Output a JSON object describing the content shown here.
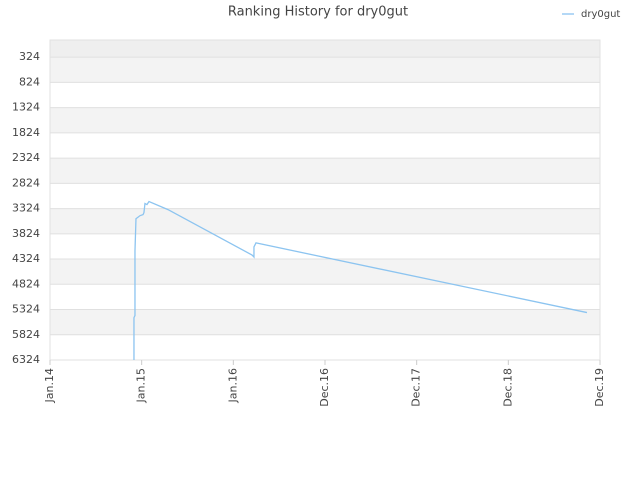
{
  "chart_data": {
    "type": "line",
    "title": "Ranking History for dry0gut",
    "x": [
      0.916,
      0.916,
      0.927,
      0.927,
      0.938,
      0.982,
      1.015,
      1.025,
      1.036,
      1.058,
      1.08,
      1.287,
      2.204,
      2.225,
      2.225,
      2.247,
      5.858
    ],
    "series": [
      {
        "name": "dry0gut",
        "color": "#8cc4f0",
        "values": [
          6324,
          5484,
          5444,
          4164,
          3524,
          3464,
          3444,
          3404,
          3224,
          3244,
          3184,
          3344,
          4244,
          4284,
          4084,
          4004,
          5384
        ]
      }
    ],
    "xlim": [
      0,
      6
    ],
    "xticks": [
      {
        "value": 0,
        "label": "Jan.14"
      },
      {
        "value": 1,
        "label": "Jan.15"
      },
      {
        "value": 2,
        "label": "Jan.16"
      },
      {
        "value": 3,
        "label": "Dec.16"
      },
      {
        "value": 4,
        "label": "Dec.17"
      },
      {
        "value": 5,
        "label": "Dec.18"
      },
      {
        "value": 6,
        "label": "Dec.19"
      }
    ],
    "ylim": [
      6324,
      -16
    ],
    "yticks": [
      324,
      824,
      1324,
      1824,
      2324,
      2824,
      3324,
      3824,
      4324,
      4824,
      5324,
      5824,
      6324
    ],
    "grid": true,
    "legend": "top-right"
  }
}
